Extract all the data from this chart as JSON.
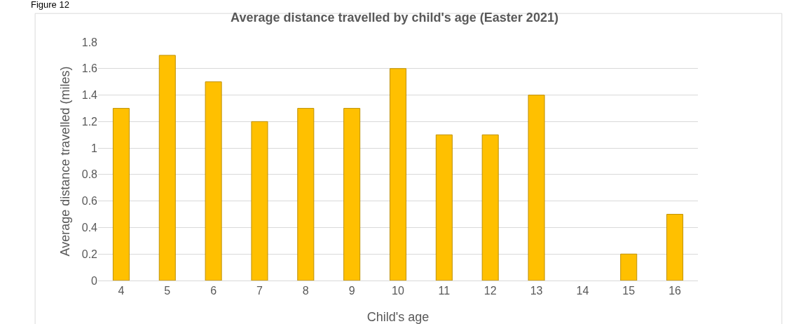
{
  "chart_data": {
    "type": "bar",
    "title": "Average distance travelled by child's age (Easter 2021)",
    "xlabel": "Child's age",
    "ylabel": "Average distance travelled (miles)",
    "annotations": [
      "Figure 12"
    ],
    "categories": [
      "4",
      "5",
      "6",
      "7",
      "8",
      "9",
      "10",
      "11",
      "12",
      "13",
      "14",
      "15",
      "16"
    ],
    "values": [
      1.3,
      1.7,
      1.5,
      1.2,
      1.3,
      1.3,
      1.6,
      1.1,
      1.1,
      1.4,
      0,
      0.2,
      0.5
    ],
    "color": "#ffc000",
    "ylim": [
      0,
      1.8
    ],
    "yticks": [
      0,
      0.2,
      0.4,
      0.6,
      0.8,
      1,
      1.2,
      1.4,
      1.6,
      1.8
    ],
    "grid": "y",
    "legend": false
  }
}
